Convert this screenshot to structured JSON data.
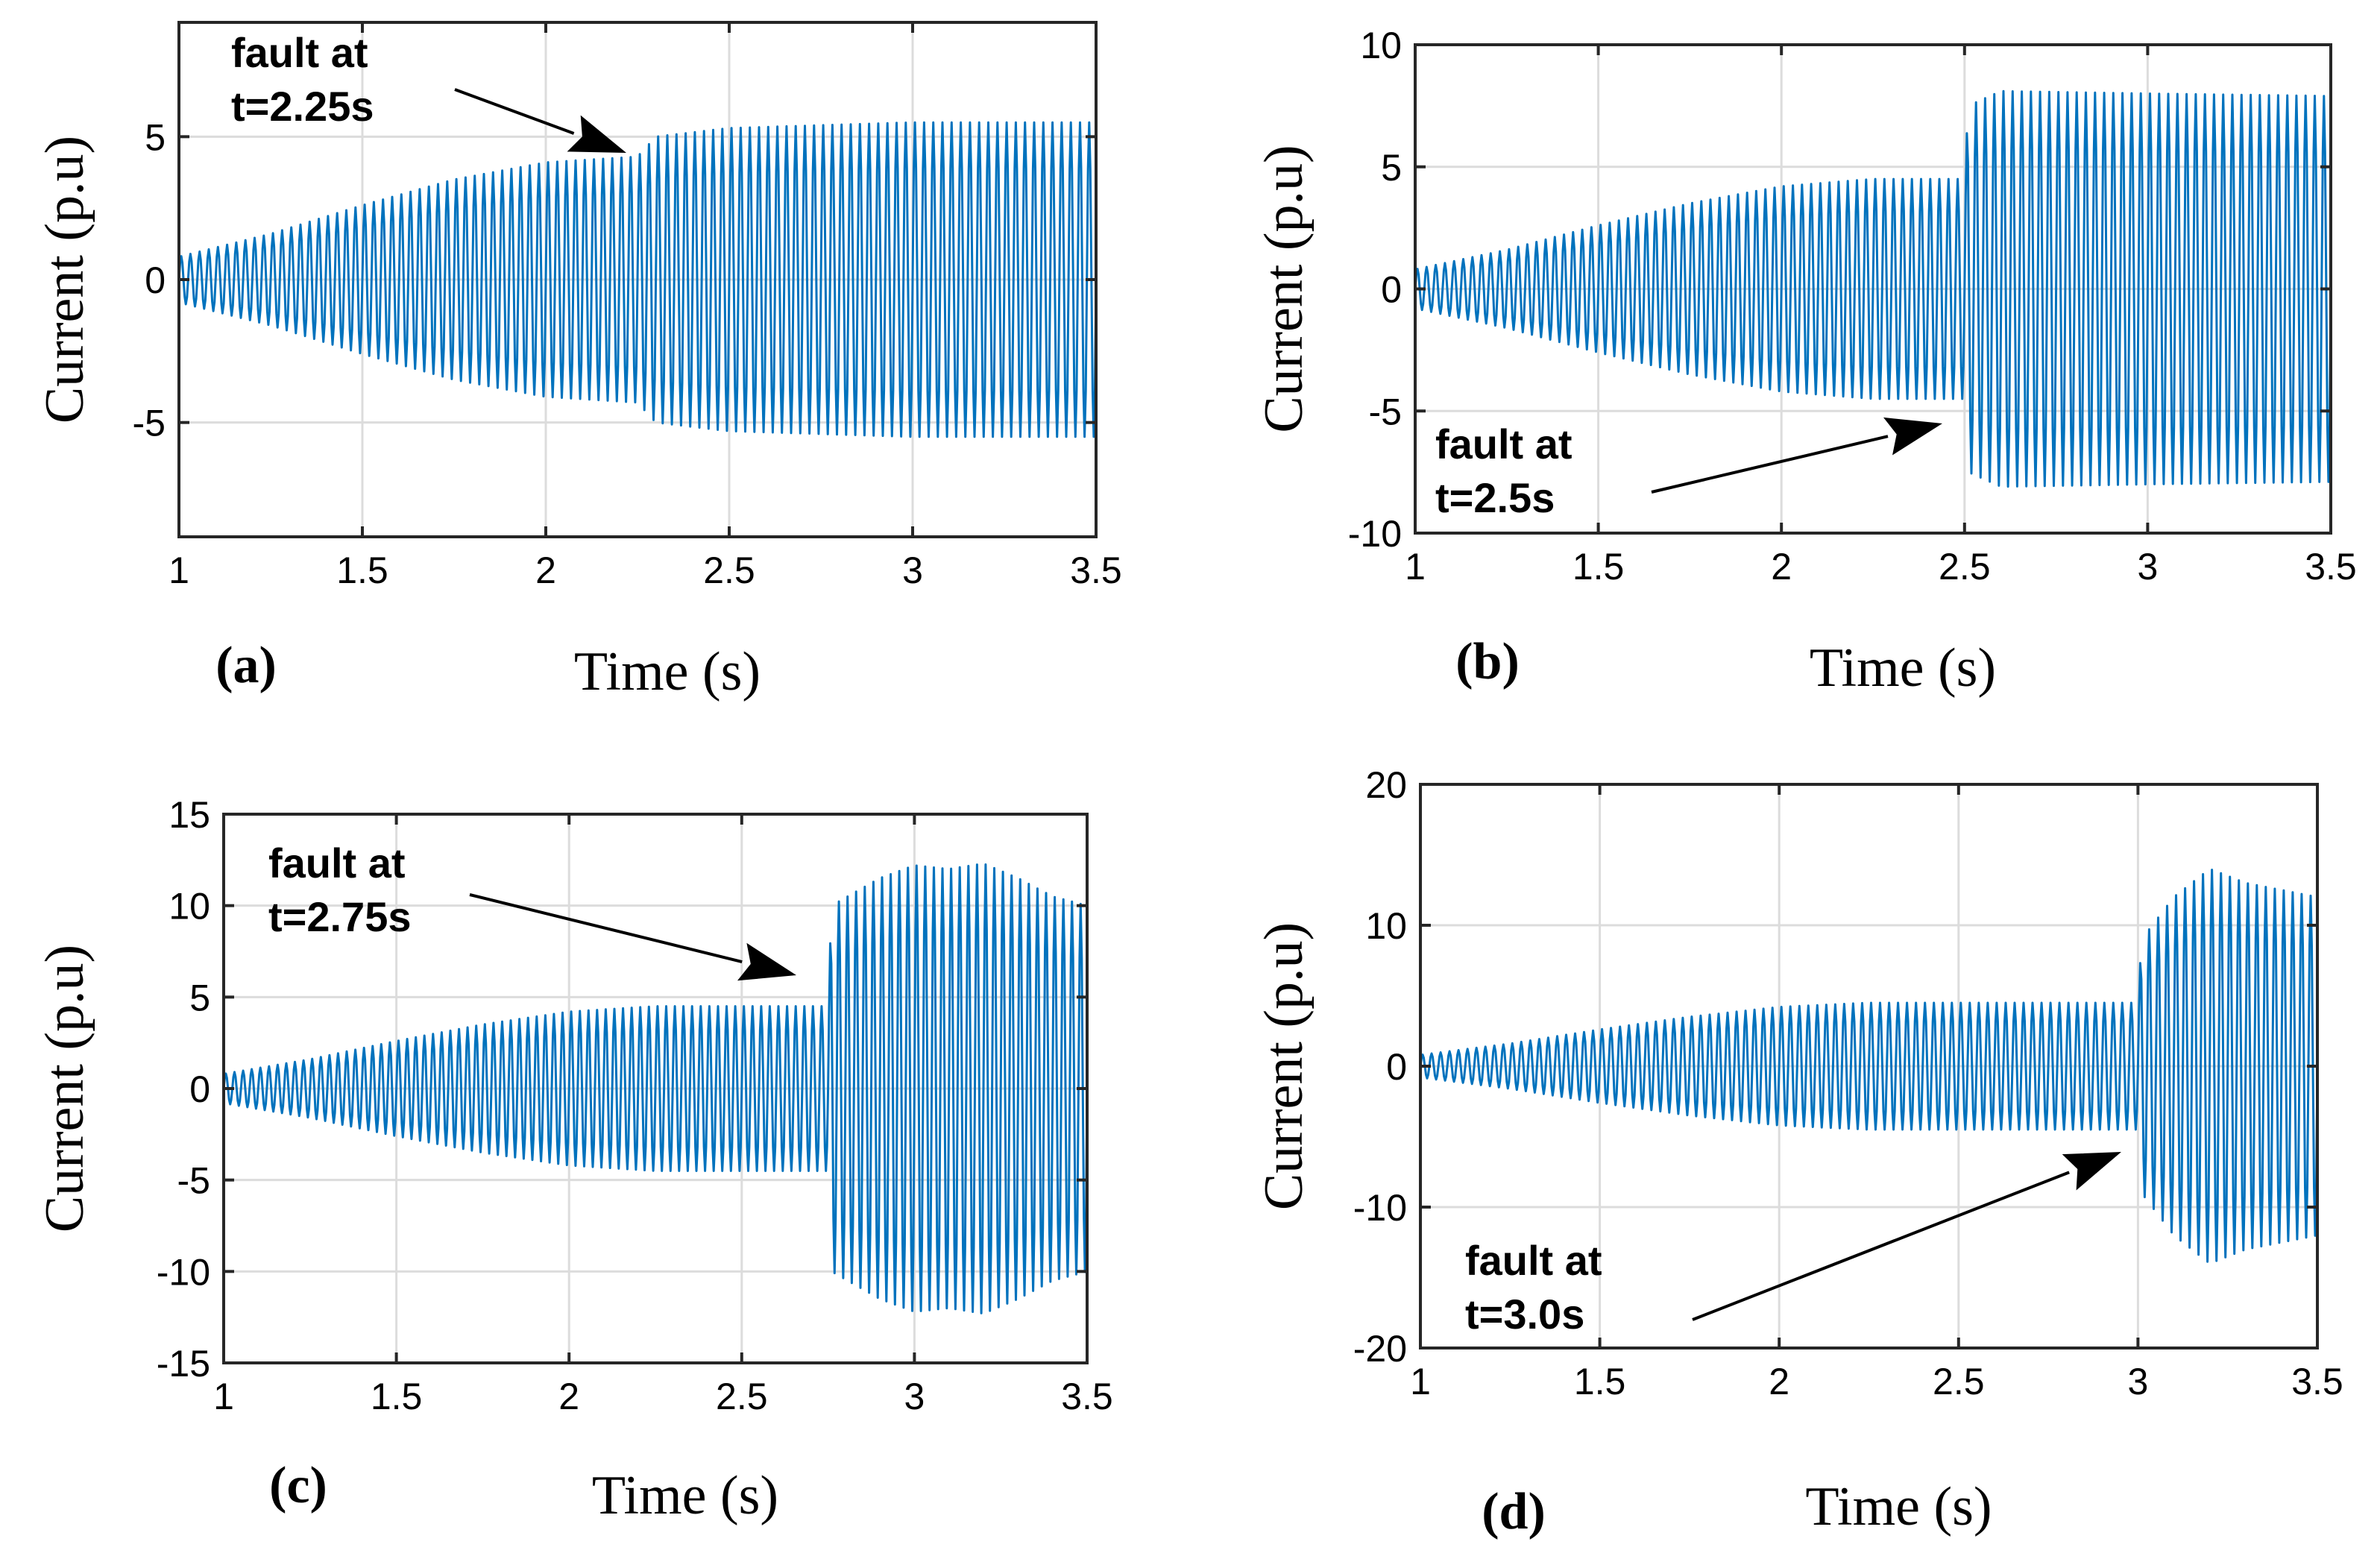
{
  "colors": {
    "signal": "#0072BD",
    "grid": "#dcdcdc",
    "axes": "#262626"
  },
  "chart_data": [
    {
      "type": "line",
      "panel": "(a)",
      "xlabel": "Time (s)",
      "ylabel": "Current (p.u)",
      "xlim": [
        1,
        3.5
      ],
      "ylim": [
        -9,
        9
      ],
      "xticks": [
        "1",
        "1.5",
        "2",
        "2.5",
        "3",
        "3.5"
      ],
      "xtick_values": [
        1,
        1.5,
        2,
        2.5,
        3,
        3.5
      ],
      "yticks": [
        "-5",
        "0",
        "5"
      ],
      "ytick_values": [
        -5,
        0,
        5
      ],
      "grid": true,
      "annotation_lines": [
        "fault at",
        "t=2.25s"
      ],
      "fault_time": 2.25,
      "series": [
        {
          "name": "Current",
          "envelope": {
            "t": [
              1.0,
              1.25,
              1.5,
              1.75,
              2.0,
              2.25,
              2.3,
              2.5,
              3.0,
              3.5
            ],
            "amp": [
              0.8,
              1.6,
              2.6,
              3.5,
              4.1,
              4.3,
              5.0,
              5.3,
              5.5,
              5.5
            ]
          },
          "spike_to": -1.8
        }
      ]
    },
    {
      "type": "line",
      "panel": "(b)",
      "xlabel": "Time (s)",
      "ylabel": "Current (p.u)",
      "xlim": [
        1,
        3.5
      ],
      "ylim": [
        -10,
        10
      ],
      "xticks": [
        "1",
        "1.5",
        "2",
        "2.5",
        "3",
        "3.5"
      ],
      "xtick_values": [
        1,
        1.5,
        2,
        2.5,
        3,
        3.5
      ],
      "yticks": [
        "-10",
        "-5",
        "0",
        "5",
        "10"
      ],
      "ytick_values": [
        -10,
        -5,
        0,
        5,
        10
      ],
      "grid": true,
      "annotation_lines": [
        "fault at",
        "t=2.5s"
      ],
      "fault_time": 2.5,
      "series": [
        {
          "name": "Current",
          "envelope": {
            "t": [
              1.0,
              1.25,
              1.5,
              1.75,
              2.0,
              2.25,
              2.5,
              2.51,
              2.6,
              3.0,
              3.5
            ],
            "amp": [
              0.8,
              1.6,
              2.6,
              3.5,
              4.2,
              4.5,
              4.5,
              7.5,
              8.1,
              8.0,
              7.9
            ]
          },
          "spike_to": -7.8
        }
      ]
    },
    {
      "type": "line",
      "panel": "(c)",
      "xlabel": "Time (s)",
      "ylabel": "Current (p.u)",
      "xlim": [
        1,
        3.5
      ],
      "ylim": [
        -15,
        15
      ],
      "xticks": [
        "1",
        "1.5",
        "2",
        "2.5",
        "3",
        "3.5"
      ],
      "xtick_values": [
        1,
        1.5,
        2,
        2.5,
        3,
        3.5
      ],
      "yticks": [
        "-15",
        "-10",
        "-5",
        "0",
        "5",
        "10",
        "15"
      ],
      "ytick_values": [
        -15,
        -10,
        -5,
        0,
        5,
        10,
        15
      ],
      "grid": true,
      "annotation_lines": [
        "fault at",
        "t=2.75s"
      ],
      "fault_time": 2.75,
      "series": [
        {
          "name": "Current",
          "envelope": {
            "t": [
              1.0,
              1.25,
              1.5,
              1.75,
              2.0,
              2.25,
              2.5,
              2.75,
              2.76,
              2.9,
              3.0,
              3.1,
              3.2,
              3.3,
              3.4,
              3.5
            ],
            "amp": [
              0.8,
              1.6,
              2.6,
              3.5,
              4.2,
              4.5,
              4.5,
              4.5,
              10.0,
              11.5,
              12.2,
              12.0,
              12.3,
              11.5,
              10.5,
              10.0
            ]
          },
          "spike_to": -9.5
        }
      ]
    },
    {
      "type": "line",
      "panel": "(d)",
      "xlabel": "Time (s)",
      "ylabel": "Current (p.u)",
      "xlim": [
        1,
        3.5
      ],
      "ylim": [
        -20,
        20
      ],
      "xticks": [
        "1",
        "1.5",
        "2",
        "2.5",
        "3",
        "3.5"
      ],
      "xtick_values": [
        1,
        1.5,
        2,
        2.5,
        3,
        3.5
      ],
      "yticks": [
        "-20",
        "-10",
        "0",
        "10",
        "20"
      ],
      "ytick_values": [
        -20,
        -10,
        0,
        10,
        20
      ],
      "grid": true,
      "annotation_lines": [
        "fault at",
        "t=3.0s"
      ],
      "fault_time": 3.0,
      "series": [
        {
          "name": "Current",
          "envelope": {
            "t": [
              1.0,
              1.25,
              1.5,
              1.75,
              2.0,
              2.25,
              2.5,
              2.75,
              3.0,
              3.01,
              3.1,
              3.2,
              3.3,
              3.4,
              3.5
            ],
            "amp": [
              0.8,
              1.6,
              2.6,
              3.5,
              4.2,
              4.5,
              4.5,
              4.5,
              4.5,
              9.0,
              12.0,
              14.0,
              13.0,
              12.5,
              12.0
            ]
          },
          "spike_to": -12.0
        }
      ]
    }
  ]
}
